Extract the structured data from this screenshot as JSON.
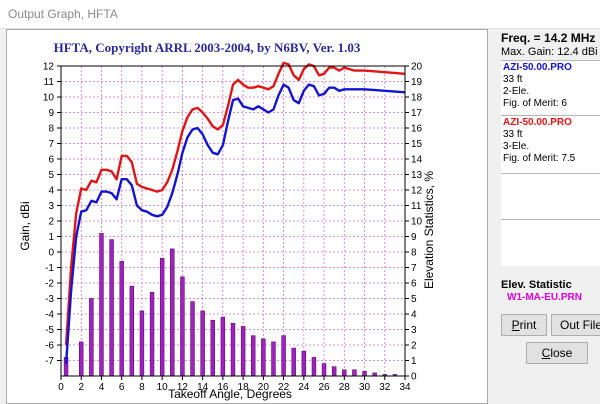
{
  "window": {
    "title": "Output Graph, HFTA"
  },
  "colors": {
    "series_red": "#e01515",
    "series_blue": "#1414d0",
    "bars": "#a020c0",
    "title": "#2a2a9a",
    "grid": "#d070d0",
    "elev_file": "#e000e0"
  },
  "chart_data": {
    "type": "line",
    "title": "HFTA, Copyright ARRL 2003-2004, by N6BV, Ver. 1.03",
    "xlabel": "Takeoff Angle, Degrees",
    "ylabel": "Gain, dBi",
    "y2label": "Elevation Statistics, %",
    "xlim": [
      0,
      34
    ],
    "ylim": [
      -8,
      12
    ],
    "y2lim": [
      0,
      20
    ],
    "x_ticks": [
      0,
      2,
      4,
      6,
      8,
      10,
      12,
      14,
      16,
      18,
      20,
      22,
      24,
      26,
      28,
      30,
      32,
      34
    ],
    "y_ticks": [
      12,
      11,
      10,
      9,
      8,
      7,
      6,
      5,
      4,
      3,
      2,
      1,
      0,
      -1,
      -2,
      -3,
      -4,
      -5,
      -6,
      -7
    ],
    "y2_ticks": [
      20,
      19,
      18,
      17,
      16,
      15,
      14,
      13,
      12,
      11,
      10,
      9,
      8,
      7,
      6,
      5,
      4,
      3,
      2,
      1,
      0
    ],
    "grid": true,
    "series": [
      {
        "name": "AZI-50.00.PRO (3-Ele.)",
        "color": "#e01515",
        "x": [
          0.5,
          1,
          1.5,
          2,
          2.5,
          3,
          3.5,
          4,
          4.5,
          5,
          5.5,
          6,
          6.5,
          7,
          7.5,
          8,
          8.5,
          9,
          9.5,
          10,
          10.5,
          11,
          11.5,
          12,
          12.5,
          13,
          13.5,
          14,
          14.5,
          15,
          15.5,
          16,
          16.5,
          17,
          17.5,
          18,
          18.5,
          19,
          19.5,
          20,
          20.5,
          21,
          21.5,
          22,
          22.5,
          23,
          23.5,
          24,
          24.5,
          25,
          25.5,
          26,
          26.5,
          27,
          27.5,
          28,
          29,
          30,
          32,
          34
        ],
        "y": [
          -6,
          -1,
          2.5,
          4.1,
          4.0,
          4.6,
          4.5,
          5.3,
          5.3,
          5.2,
          4.7,
          6.2,
          6.2,
          5.8,
          4.4,
          4.2,
          4.1,
          4.0,
          3.9,
          4.0,
          4.5,
          5.3,
          6.5,
          7.8,
          8.7,
          9.2,
          9.3,
          9.0,
          8.6,
          8.1,
          7.9,
          8.2,
          9.4,
          10.8,
          11.1,
          10.8,
          10.6,
          10.6,
          10.7,
          10.6,
          10.5,
          10.7,
          11.5,
          12.2,
          12.1,
          11.4,
          11.1,
          11.8,
          12.1,
          12.0,
          11.4,
          11.5,
          11.9,
          11.9,
          11.7,
          11.9,
          11.7,
          11.7,
          11.6,
          11.5
        ]
      },
      {
        "name": "AZI-50.00.PRO (2-Ele.)",
        "color": "#1414d0",
        "x": [
          0.5,
          1,
          1.5,
          2,
          2.5,
          3,
          3.5,
          4,
          4.5,
          5,
          5.5,
          6,
          6.5,
          7,
          7.5,
          8,
          8.5,
          9,
          9.5,
          10,
          10.5,
          11,
          11.5,
          12,
          12.5,
          13,
          13.5,
          14,
          14.5,
          15,
          15.5,
          16,
          16.5,
          17,
          17.5,
          18,
          18.5,
          19,
          19.5,
          20,
          20.5,
          21,
          21.5,
          22,
          22.5,
          23,
          23.5,
          24,
          24.5,
          25,
          25.5,
          26,
          26.5,
          27,
          27.5,
          28,
          29,
          30,
          32,
          34
        ],
        "y": [
          -7.2,
          -2.5,
          1.0,
          2.6,
          2.7,
          3.3,
          3.2,
          3.9,
          3.9,
          3.8,
          3.4,
          4.7,
          4.7,
          4.3,
          3.0,
          2.7,
          2.6,
          2.4,
          2.3,
          2.4,
          2.9,
          3.8,
          5.0,
          6.4,
          7.4,
          7.9,
          8.0,
          7.6,
          6.9,
          6.4,
          6.3,
          6.9,
          8.4,
          9.8,
          9.9,
          9.4,
          9.3,
          9.2,
          9.4,
          9.2,
          9.0,
          9.2,
          10.1,
          10.8,
          10.6,
          9.8,
          9.6,
          10.4,
          10.8,
          10.7,
          10.1,
          10.2,
          10.6,
          10.6,
          10.4,
          10.5,
          10.5,
          10.5,
          10.4,
          10.3
        ]
      }
    ],
    "bars": {
      "name": "W1-MA-EU.PRN",
      "x": [
        0.5,
        1,
        1.5,
        2,
        2.5,
        3,
        3.5,
        4,
        4.5,
        5,
        5.5,
        6,
        6.5,
        7,
        7.5,
        8,
        8.5,
        9,
        9.5,
        10,
        10.5,
        11,
        11.5,
        12,
        12.5,
        13,
        13.5,
        14,
        14.5,
        15,
        15.5,
        16,
        16.5,
        17,
        17.5,
        18,
        18.5,
        19,
        19.5,
        20,
        20.5,
        21,
        21.5,
        22,
        22.5,
        23,
        23.5,
        24,
        24.5,
        25,
        25.5,
        26,
        26.5,
        27,
        27.5,
        28,
        28.5,
        29,
        29.5,
        30,
        30.5,
        31,
        31.5,
        32,
        32.5,
        33
      ],
      "values": [
        1.2,
        0,
        0,
        2.2,
        0,
        5,
        0,
        9.2,
        0,
        8.8,
        0,
        7.4,
        0,
        5.8,
        0,
        4.2,
        0,
        5.4,
        0,
        7.6,
        0,
        8.2,
        0,
        6.4,
        0,
        4.8,
        0,
        4.2,
        0,
        3.6,
        0,
        3.8,
        0,
        3.4,
        0,
        3.2,
        0,
        2.6,
        0,
        2.4,
        0,
        2.2,
        0,
        2.6,
        0,
        1.8,
        0,
        1.6,
        0,
        1.2,
        0,
        0.8,
        0,
        0.6,
        0,
        0.4,
        0,
        0.4,
        0,
        0.3,
        0,
        0.2,
        0,
        0.1,
        0,
        0.1
      ]
    }
  },
  "sidebar": {
    "freq": "Freq. = 14.2 MHz",
    "max_gain": "Max. Gain: 12.4 dBi",
    "entries": [
      {
        "file": "AZI-50.00.PRO",
        "file_color": "#1414d0",
        "height": "33 ft",
        "elements": "2-Ele.",
        "fom": "Fig. of Merit:  6"
      },
      {
        "file": "AZI-50.00.PRO",
        "file_color": "#e01515",
        "height": "33 ft",
        "elements": "3-Ele.",
        "fom": "Fig. of Merit:  7.5"
      }
    ],
    "elev_title": "Elev. Statistic",
    "elev_file": "W1-MA-EU.PRN"
  },
  "buttons": {
    "print": "Print",
    "out_file": "Out File",
    "close": "Close"
  }
}
